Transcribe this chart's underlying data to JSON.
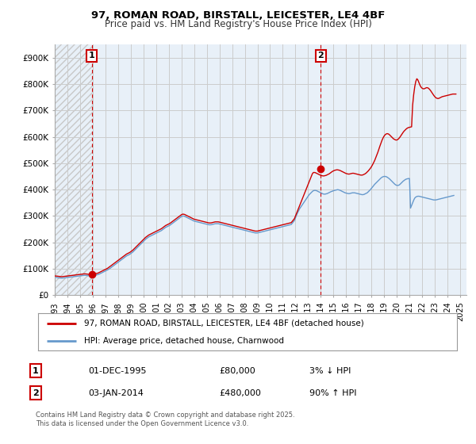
{
  "title": "97, ROMAN ROAD, BIRSTALL, LEICESTER, LE4 4BF",
  "subtitle": "Price paid vs. HM Land Registry's House Price Index (HPI)",
  "ylim": [
    0,
    950000
  ],
  "yticks": [
    0,
    100000,
    200000,
    300000,
    400000,
    500000,
    600000,
    700000,
    800000,
    900000
  ],
  "ytick_labels": [
    "£0",
    "£100K",
    "£200K",
    "£300K",
    "£400K",
    "£500K",
    "£600K",
    "£700K",
    "£800K",
    "£900K"
  ],
  "legend_entry1": "97, ROMAN ROAD, BIRSTALL, LEICESTER, LE4 4BF (detached house)",
  "legend_entry2": "HPI: Average price, detached house, Charnwood",
  "line_color_red": "#cc0000",
  "line_color_blue": "#6699cc",
  "marker1_label": "1",
  "marker2_label": "2",
  "transaction1_date": "01-DEC-1995",
  "transaction1_price": "£80,000",
  "transaction1_hpi": "3% ↓ HPI",
  "transaction2_date": "03-JAN-2014",
  "transaction2_price": "£480,000",
  "transaction2_hpi": "90% ↑ HPI",
  "footer": "Contains HM Land Registry data © Crown copyright and database right 2025.\nThis data is licensed under the Open Government Licence v3.0.",
  "bg_color": "#ffffff",
  "plot_bg_color": "#e8f0f8",
  "grid_color": "#cccccc",
  "hatch_color": "#c8c8c8",
  "hpi_red_x": [
    1993.0,
    1993.083,
    1993.167,
    1993.25,
    1993.333,
    1993.417,
    1993.5,
    1993.583,
    1993.667,
    1993.75,
    1993.833,
    1993.917,
    1994.0,
    1994.083,
    1994.167,
    1994.25,
    1994.333,
    1994.417,
    1994.5,
    1994.583,
    1994.667,
    1994.75,
    1994.833,
    1994.917,
    1995.0,
    1995.083,
    1995.167,
    1995.25,
    1995.333,
    1995.417,
    1995.5,
    1995.583,
    1995.667,
    1995.75,
    1995.833,
    1995.917,
    1996.0,
    1996.083,
    1996.167,
    1996.25,
    1996.333,
    1996.417,
    1996.5,
    1996.583,
    1996.667,
    1996.75,
    1996.833,
    1996.917,
    1997.0,
    1997.083,
    1997.167,
    1997.25,
    1997.333,
    1997.417,
    1997.5,
    1997.583,
    1997.667,
    1997.75,
    1997.833,
    1997.917,
    1998.0,
    1998.083,
    1998.167,
    1998.25,
    1998.333,
    1998.417,
    1998.5,
    1998.583,
    1998.667,
    1998.75,
    1998.833,
    1998.917,
    1999.0,
    1999.083,
    1999.167,
    1999.25,
    1999.333,
    1999.417,
    1999.5,
    1999.583,
    1999.667,
    1999.75,
    1999.833,
    1999.917,
    2000.0,
    2000.083,
    2000.167,
    2000.25,
    2000.333,
    2000.417,
    2000.5,
    2000.583,
    2000.667,
    2000.75,
    2000.833,
    2000.917,
    2001.0,
    2001.083,
    2001.167,
    2001.25,
    2001.333,
    2001.417,
    2001.5,
    2001.583,
    2001.667,
    2001.75,
    2001.833,
    2001.917,
    2002.0,
    2002.083,
    2002.167,
    2002.25,
    2002.333,
    2002.417,
    2002.5,
    2002.583,
    2002.667,
    2002.75,
    2002.833,
    2002.917,
    2003.0,
    2003.083,
    2003.167,
    2003.25,
    2003.333,
    2003.417,
    2003.5,
    2003.583,
    2003.667,
    2003.75,
    2003.833,
    2003.917,
    2004.0,
    2004.083,
    2004.167,
    2004.25,
    2004.333,
    2004.417,
    2004.5,
    2004.583,
    2004.667,
    2004.75,
    2004.833,
    2004.917,
    2005.0,
    2005.083,
    2005.167,
    2005.25,
    2005.333,
    2005.417,
    2005.5,
    2005.583,
    2005.667,
    2005.75,
    2005.833,
    2005.917,
    2006.0,
    2006.083,
    2006.167,
    2006.25,
    2006.333,
    2006.417,
    2006.5,
    2006.583,
    2006.667,
    2006.75,
    2006.833,
    2006.917,
    2007.0,
    2007.083,
    2007.167,
    2007.25,
    2007.333,
    2007.417,
    2007.5,
    2007.583,
    2007.667,
    2007.75,
    2007.833,
    2007.917,
    2008.0,
    2008.083,
    2008.167,
    2008.25,
    2008.333,
    2008.417,
    2008.5,
    2008.583,
    2008.667,
    2008.75,
    2008.833,
    2008.917,
    2009.0,
    2009.083,
    2009.167,
    2009.25,
    2009.333,
    2009.417,
    2009.5,
    2009.583,
    2009.667,
    2009.75,
    2009.833,
    2009.917,
    2010.0,
    2010.083,
    2010.167,
    2010.25,
    2010.333,
    2010.417,
    2010.5,
    2010.583,
    2010.667,
    2010.75,
    2010.833,
    2010.917,
    2011.0,
    2011.083,
    2011.167,
    2011.25,
    2011.333,
    2011.417,
    2011.5,
    2011.583,
    2011.667,
    2011.75,
    2011.833,
    2011.917,
    2012.0,
    2012.083,
    2012.167,
    2012.25,
    2012.333,
    2012.417,
    2012.5,
    2012.583,
    2012.667,
    2012.75,
    2012.833,
    2012.917,
    2013.0,
    2013.083,
    2013.167,
    2013.25,
    2013.333,
    2013.417,
    2013.5,
    2013.583,
    2013.667,
    2013.75,
    2013.833,
    2013.917,
    2014.0,
    2014.083,
    2014.167,
    2014.25,
    2014.333,
    2014.417,
    2014.5,
    2014.583,
    2014.667,
    2014.75,
    2014.833,
    2014.917,
    2015.0,
    2015.083,
    2015.167,
    2015.25,
    2015.333,
    2015.417,
    2015.5,
    2015.583,
    2015.667,
    2015.75,
    2015.833,
    2015.917,
    2016.0,
    2016.083,
    2016.167,
    2016.25,
    2016.333,
    2016.417,
    2016.5,
    2016.583,
    2016.667,
    2016.75,
    2016.833,
    2016.917,
    2017.0,
    2017.083,
    2017.167,
    2017.25,
    2017.333,
    2017.417,
    2017.5,
    2017.583,
    2017.667,
    2017.75,
    2017.833,
    2017.917,
    2018.0,
    2018.083,
    2018.167,
    2018.25,
    2018.333,
    2018.417,
    2018.5,
    2018.583,
    2018.667,
    2018.75,
    2018.833,
    2018.917,
    2019.0,
    2019.083,
    2019.167,
    2019.25,
    2019.333,
    2019.417,
    2019.5,
    2019.583,
    2019.667,
    2019.75,
    2019.833,
    2019.917,
    2020.0,
    2020.083,
    2020.167,
    2020.25,
    2020.333,
    2020.417,
    2020.5,
    2020.583,
    2020.667,
    2020.75,
    2020.833,
    2020.917,
    2021.0,
    2021.083,
    2021.167,
    2021.25,
    2021.333,
    2021.417,
    2021.5,
    2021.583,
    2021.667,
    2021.75,
    2021.833,
    2021.917,
    2022.0,
    2022.083,
    2022.167,
    2022.25,
    2022.333,
    2022.417,
    2022.5,
    2022.583,
    2022.667,
    2022.75,
    2022.833,
    2022.917,
    2023.0,
    2023.083,
    2023.167,
    2023.25,
    2023.333,
    2023.417,
    2023.5,
    2023.583,
    2023.667,
    2023.75,
    2023.833,
    2023.917,
    2024.0,
    2024.083,
    2024.167,
    2024.25,
    2024.333,
    2024.417,
    2024.5,
    2024.583,
    2024.667,
    2024.75
  ],
  "hpi_red_y": [
    73000,
    73000,
    72500,
    72000,
    71500,
    71000,
    70500,
    70500,
    71000,
    71500,
    72000,
    72500,
    73000,
    73500,
    74000,
    74500,
    75000,
    75500,
    76000,
    76500,
    77000,
    77500,
    78000,
    78500,
    79000,
    79500,
    80000,
    80500,
    81000,
    81000,
    80500,
    80000,
    79500,
    79000,
    78500,
    79000,
    79500,
    80000,
    81000,
    82000,
    83000,
    84000,
    86000,
    88000,
    90000,
    92000,
    94000,
    96000,
    98000,
    100000,
    102000,
    105000,
    108000,
    111000,
    114000,
    117000,
    120000,
    123000,
    126000,
    129000,
    132000,
    135000,
    138000,
    141000,
    144000,
    147000,
    150000,
    153000,
    156000,
    158000,
    160000,
    162000,
    165000,
    168000,
    171000,
    175000,
    179000,
    183000,
    187000,
    191000,
    195000,
    199000,
    203000,
    207000,
    211000,
    215000,
    219000,
    222000,
    225000,
    228000,
    230000,
    232000,
    234000,
    236000,
    238000,
    240000,
    242000,
    244000,
    246000,
    248000,
    250000,
    252000,
    255000,
    258000,
    261000,
    264000,
    266000,
    268000,
    270000,
    272000,
    275000,
    278000,
    281000,
    284000,
    287000,
    290000,
    293000,
    296000,
    299000,
    302000,
    305000,
    307000,
    307000,
    306000,
    304000,
    302000,
    300000,
    298000,
    296000,
    294000,
    292000,
    290000,
    288000,
    287000,
    286000,
    285000,
    284000,
    283000,
    282000,
    281000,
    280000,
    279000,
    278000,
    277000,
    276000,
    275000,
    274000,
    274000,
    274000,
    275000,
    276000,
    277000,
    278000,
    278000,
    278000,
    278000,
    277000,
    276000,
    275000,
    274000,
    273000,
    272000,
    271000,
    270000,
    269000,
    268000,
    267000,
    266000,
    265000,
    264000,
    263000,
    262000,
    261000,
    260000,
    259000,
    258000,
    257000,
    256000,
    255000,
    254000,
    253000,
    252000,
    251000,
    250000,
    249000,
    248000,
    247000,
    246000,
    245000,
    244000,
    243000,
    243000,
    243000,
    244000,
    245000,
    246000,
    247000,
    248000,
    249000,
    250000,
    251000,
    252000,
    253000,
    254000,
    255000,
    256000,
    257000,
    258000,
    259000,
    260000,
    261000,
    262000,
    263000,
    264000,
    265000,
    266000,
    267000,
    268000,
    269000,
    270000,
    271000,
    272000,
    273000,
    274000,
    275000,
    280000,
    285000,
    290000,
    300000,
    310000,
    320000,
    330000,
    340000,
    350000,
    360000,
    370000,
    380000,
    390000,
    400000,
    410000,
    420000,
    430000,
    440000,
    450000,
    460000,
    465000,
    465000,
    464000,
    462000,
    460000,
    458000,
    456000,
    454000,
    453000,
    452000,
    452000,
    453000,
    454000,
    456000,
    458000,
    460000,
    463000,
    466000,
    469000,
    471000,
    473000,
    474000,
    475000,
    475000,
    474000,
    473000,
    471000,
    469000,
    467000,
    465000,
    463000,
    461000,
    460000,
    459000,
    459000,
    460000,
    461000,
    462000,
    462000,
    461000,
    460000,
    459000,
    458000,
    457000,
    456000,
    455000,
    455000,
    456000,
    458000,
    460000,
    463000,
    467000,
    471000,
    476000,
    481000,
    487000,
    494000,
    502000,
    510000,
    520000,
    530000,
    541000,
    553000,
    565000,
    576000,
    587000,
    596000,
    603000,
    608000,
    611000,
    612000,
    611000,
    608000,
    604000,
    600000,
    596000,
    592000,
    590000,
    588000,
    588000,
    590000,
    594000,
    599000,
    605000,
    611000,
    617000,
    622000,
    626000,
    630000,
    633000,
    635000,
    636000,
    637000,
    638000,
    720000,
    760000,
    790000,
    810000,
    820000,
    815000,
    805000,
    795000,
    788000,
    784000,
    782000,
    782000,
    784000,
    786000,
    786000,
    784000,
    780000,
    775000,
    769000,
    763000,
    757000,
    752000,
    748000,
    746000,
    745000,
    746000,
    748000,
    750000,
    752000,
    753000,
    754000,
    755000,
    756000,
    757000,
    758000,
    759000,
    760000,
    761000,
    762000,
    762000,
    762000,
    762000
  ],
  "hpi_blue_y": [
    68000,
    67500,
    67000,
    66500,
    66000,
    65500,
    65000,
    65000,
    65500,
    66000,
    66500,
    67000,
    67500,
    68000,
    68500,
    69000,
    69500,
    70000,
    70500,
    71000,
    71500,
    72000,
    72500,
    73000,
    73500,
    74000,
    74500,
    75000,
    75500,
    75500,
    75000,
    74500,
    74000,
    73500,
    73000,
    73500,
    74000,
    74500,
    75500,
    76500,
    77500,
    78500,
    80000,
    82000,
    84000,
    86000,
    88000,
    90000,
    92000,
    94000,
    96000,
    98500,
    101000,
    104000,
    107000,
    110000,
    113000,
    116000,
    119000,
    122000,
    125000,
    128000,
    131000,
    134000,
    137000,
    140000,
    143000,
    146000,
    149000,
    151000,
    153000,
    155000,
    158000,
    161000,
    164000,
    168000,
    172000,
    176000,
    180000,
    184000,
    188000,
    192000,
    196000,
    200000,
    204000,
    208000,
    212000,
    215000,
    218000,
    221000,
    223000,
    225000,
    227000,
    229000,
    231000,
    233000,
    235000,
    237000,
    239000,
    241000,
    243000,
    245000,
    248000,
    251000,
    254000,
    257000,
    259000,
    261000,
    263000,
    265000,
    268000,
    271000,
    274000,
    277000,
    280000,
    283000,
    286000,
    289000,
    292000,
    295000,
    298000,
    300000,
    300000,
    299000,
    297000,
    295000,
    293000,
    291000,
    289000,
    287000,
    285000,
    283000,
    281000,
    280000,
    279000,
    278000,
    277000,
    276000,
    275000,
    274000,
    273000,
    272000,
    271000,
    270000,
    269000,
    268000,
    267000,
    267000,
    267000,
    268000,
    269000,
    270000,
    271000,
    271000,
    271000,
    271000,
    270000,
    269000,
    268000,
    267000,
    266000,
    265000,
    264000,
    263000,
    262000,
    261000,
    260000,
    259000,
    258000,
    257000,
    256000,
    255000,
    254000,
    253000,
    252000,
    251000,
    250000,
    249000,
    248000,
    247000,
    246000,
    245000,
    244000,
    243000,
    242000,
    241000,
    240000,
    239000,
    238000,
    237000,
    236000,
    236000,
    236000,
    237000,
    238000,
    239000,
    240000,
    241000,
    242000,
    243000,
    244000,
    245000,
    246000,
    247000,
    248000,
    249000,
    250000,
    251000,
    252000,
    253000,
    254000,
    255000,
    256000,
    257000,
    258000,
    259000,
    260000,
    261000,
    262000,
    263000,
    264000,
    265000,
    266000,
    267000,
    268000,
    273000,
    278000,
    283000,
    293000,
    303000,
    312000,
    320000,
    328000,
    334000,
    340000,
    346000,
    352000,
    358000,
    364000,
    370000,
    376000,
    381000,
    385000,
    389000,
    393000,
    396000,
    397000,
    397000,
    396000,
    394000,
    392000,
    390000,
    388000,
    386000,
    384000,
    383000,
    383000,
    384000,
    385000,
    387000,
    389000,
    391000,
    393000,
    394000,
    396000,
    397000,
    398000,
    399000,
    400000,
    399000,
    398000,
    396000,
    394000,
    392000,
    390000,
    388000,
    387000,
    386000,
    385000,
    385000,
    386000,
    387000,
    388000,
    388000,
    388000,
    387000,
    386000,
    385000,
    384000,
    383000,
    382000,
    381000,
    381000,
    382000,
    384000,
    386000,
    388000,
    392000,
    396000,
    400000,
    405000,
    410000,
    415000,
    420000,
    424000,
    428000,
    432000,
    436000,
    440000,
    444000,
    447000,
    449000,
    450000,
    450000,
    449000,
    447000,
    444000,
    441000,
    437000,
    433000,
    429000,
    425000,
    421000,
    418000,
    416000,
    416000,
    417000,
    420000,
    424000,
    428000,
    432000,
    435000,
    438000,
    440000,
    441000,
    442000,
    442000,
    330000,
    340000,
    350000,
    360000,
    368000,
    372000,
    374000,
    375000,
    375000,
    374000,
    373000,
    372000,
    371000,
    370000,
    369000,
    368000,
    367000,
    366000,
    365000,
    364000,
    363000,
    362000,
    361000,
    361000,
    361000,
    362000,
    363000,
    364000,
    365000,
    366000,
    367000,
    368000,
    369000,
    370000,
    371000,
    372000,
    373000,
    374000,
    375000,
    376000,
    377000,
    378000
  ],
  "point1_x": 1995.917,
  "point1_y": 80000,
  "point2_x": 2014.0,
  "point2_y": 480000,
  "xlim_left": 1993.0,
  "xlim_right": 2025.5
}
